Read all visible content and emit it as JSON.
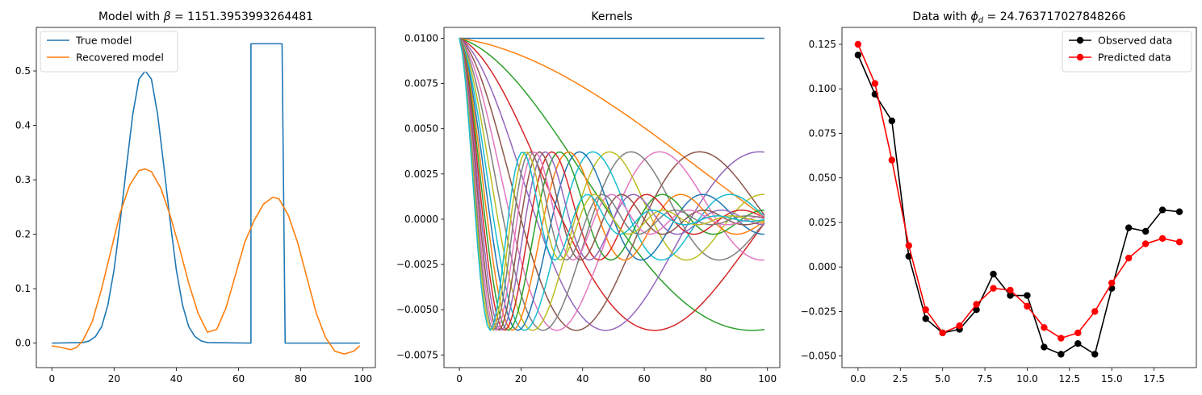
{
  "chart_data": [
    {
      "type": "line",
      "title": "Model with β = 1151.3953993264481",
      "title_prefix": "Model with ",
      "title_symbol": "β",
      "title_value": " = 1151.3953993264481",
      "xlim": [
        -5,
        104
      ],
      "ylim": [
        -0.045,
        0.58
      ],
      "xticks": [
        0,
        20,
        40,
        60,
        80,
        100
      ],
      "yticks": [
        0.0,
        0.1,
        0.2,
        0.3,
        0.4,
        0.5
      ],
      "ytick_labels": [
        "0.0",
        "0.1",
        "0.2",
        "0.3",
        "0.4",
        "0.5"
      ],
      "legend_position": "top-left",
      "series": [
        {
          "name": "True model",
          "color": "#1f77b4",
          "x": [
            0,
            10,
            12,
            14,
            16,
            18,
            20,
            22,
            24,
            26,
            28,
            30,
            32,
            34,
            36,
            38,
            40,
            42,
            44,
            46,
            48,
            50,
            64,
            64,
            65,
            74,
            74,
            75,
            99
          ],
          "y": [
            0,
            0.001,
            0.004,
            0.012,
            0.03,
            0.07,
            0.135,
            0.225,
            0.325,
            0.42,
            0.485,
            0.5,
            0.485,
            0.42,
            0.325,
            0.225,
            0.135,
            0.07,
            0.03,
            0.012,
            0.004,
            0.001,
            0,
            0.55,
            0.55,
            0.55,
            0.55,
            0,
            0
          ]
        },
        {
          "name": "Recovered model",
          "color": "#ff7f0e",
          "x": [
            0,
            3,
            6,
            8,
            10,
            13,
            16,
            19,
            22,
            25,
            28,
            30,
            32,
            35,
            38,
            41,
            44,
            47,
            50,
            53,
            56,
            59,
            62,
            65,
            68,
            71,
            73,
            76,
            79,
            82,
            85,
            88,
            91,
            94,
            97,
            99
          ],
          "y": [
            -0.005,
            -0.008,
            -0.012,
            -0.008,
            0.005,
            0.04,
            0.1,
            0.17,
            0.24,
            0.29,
            0.317,
            0.32,
            0.315,
            0.285,
            0.235,
            0.175,
            0.11,
            0.055,
            0.02,
            0.025,
            0.065,
            0.125,
            0.185,
            0.225,
            0.255,
            0.268,
            0.265,
            0.235,
            0.185,
            0.12,
            0.055,
            0.01,
            -0.015,
            -0.02,
            -0.015,
            -0.005
          ]
        }
      ]
    },
    {
      "type": "line",
      "title": "Kernels",
      "xlim": [
        -5,
        104
      ],
      "ylim": [
        -0.0082,
        0.0106
      ],
      "xticks": [
        0,
        20,
        40,
        60,
        80,
        100
      ],
      "yticks": [
        -0.0075,
        -0.005,
        -0.0025,
        0.0,
        0.0025,
        0.005,
        0.0075,
        0.01
      ],
      "ytick_labels": [
        "−0.0075",
        "−0.0050",
        "−0.0025",
        "0.0000",
        "0.0025",
        "0.0050",
        "0.0075",
        "0.0100"
      ],
      "kernel_count": 20,
      "colors": [
        "#1f77b4",
        "#ff7f0e",
        "#2ca02c",
        "#d62728",
        "#9467bd",
        "#8c564b",
        "#e377c2",
        "#7f7f7f",
        "#bcbd22",
        "#17becf"
      ]
    },
    {
      "type": "line",
      "title": "Data with ϕd = 24.763717027848266",
      "title_prefix": "Data with ",
      "title_symbol": "ϕ",
      "title_sub": "d",
      "title_value": " = 24.763717027848266",
      "xlim": [
        -0.95,
        20.0
      ],
      "ylim": [
        -0.0565,
        0.1345
      ],
      "xticks": [
        0.0,
        2.5,
        5.0,
        7.5,
        10.0,
        12.5,
        15.0,
        17.5
      ],
      "xtick_labels": [
        "0.0",
        "2.5",
        "5.0",
        "7.5",
        "10.0",
        "12.5",
        "15.0",
        "17.5"
      ],
      "yticks": [
        -0.05,
        -0.025,
        0.0,
        0.025,
        0.05,
        0.075,
        0.1,
        0.125
      ],
      "ytick_labels": [
        "−0.050",
        "−0.025",
        "0.000",
        "0.025",
        "0.050",
        "0.075",
        "0.100",
        "0.125"
      ],
      "legend_position": "top-right",
      "series": [
        {
          "name": "Observed data",
          "color": "#000000",
          "x": [
            0,
            1,
            2,
            3,
            4,
            5,
            6,
            7,
            8,
            9,
            10,
            11,
            12,
            13,
            14,
            15,
            16,
            17,
            18,
            19
          ],
          "y": [
            0.119,
            0.097,
            0.082,
            0.006,
            -0.029,
            -0.037,
            -0.035,
            -0.024,
            -0.004,
            -0.016,
            -0.016,
            -0.045,
            -0.049,
            -0.043,
            -0.049,
            -0.012,
            0.022,
            0.02,
            0.032,
            0.031
          ]
        },
        {
          "name": "Predicted data",
          "color": "#ff0000",
          "x": [
            0,
            1,
            2,
            3,
            4,
            5,
            6,
            7,
            8,
            9,
            10,
            11,
            12,
            13,
            14,
            15,
            16,
            17,
            18,
            19
          ],
          "y": [
            0.125,
            0.103,
            0.06,
            0.012,
            -0.024,
            -0.037,
            -0.033,
            -0.021,
            -0.012,
            -0.013,
            -0.022,
            -0.034,
            -0.04,
            -0.037,
            -0.025,
            -0.009,
            0.005,
            0.013,
            0.016,
            0.014
          ]
        }
      ]
    }
  ]
}
